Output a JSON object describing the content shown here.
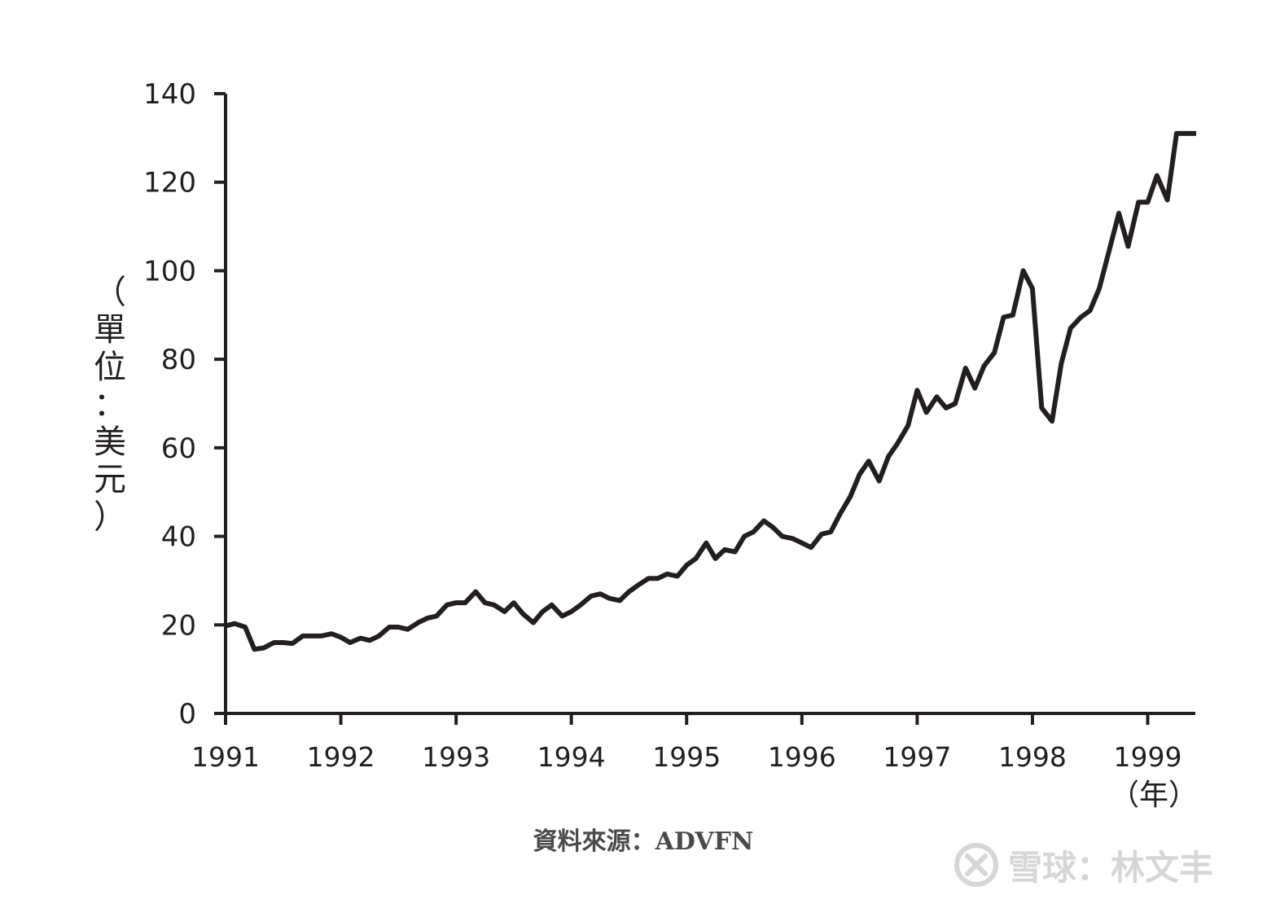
{
  "chart_data": {
    "type": "line",
    "title": "",
    "xlabel": "（年）",
    "ylabel": "（單位：美元）",
    "ylim": [
      0,
      140
    ],
    "xlim": [
      1991,
      1999.42
    ],
    "yticks": [
      "0",
      "20",
      "40",
      "60",
      "80",
      "100",
      "120",
      "140"
    ],
    "xticks": [
      "1991",
      "1992",
      "1993",
      "1994",
      "1995",
      "1996",
      "1997",
      "1998",
      "1999"
    ],
    "grid": false,
    "legend": "none",
    "series": [
      {
        "x": [
          1991.0,
          1991.08,
          1991.17,
          1991.25,
          1991.33,
          1991.42,
          1991.5,
          1991.58,
          1991.67,
          1991.75,
          1991.83,
          1991.92,
          1992.0,
          1992.08,
          1992.17,
          1992.25,
          1992.33,
          1992.42,
          1992.5,
          1992.58,
          1992.67,
          1992.75,
          1992.83,
          1992.92,
          1993.0,
          1993.08,
          1993.17,
          1993.25,
          1993.33,
          1993.42,
          1993.5,
          1993.58,
          1993.67,
          1993.75,
          1993.83,
          1993.92,
          1994.0,
          1994.08,
          1994.17,
          1994.25,
          1994.33,
          1994.42,
          1994.5,
          1994.58,
          1994.67,
          1994.75,
          1994.83,
          1994.92,
          1995.0,
          1995.08,
          1995.17,
          1995.25,
          1995.33,
          1995.42,
          1995.5,
          1995.58,
          1995.67,
          1995.75,
          1995.83,
          1995.92,
          1996.0,
          1996.08,
          1996.17,
          1996.25,
          1996.33,
          1996.42,
          1996.5,
          1996.58,
          1996.67,
          1996.75,
          1996.83,
          1996.92,
          1997.0,
          1997.08,
          1997.17,
          1997.25,
          1997.33,
          1997.42,
          1997.5,
          1997.58,
          1997.67,
          1997.75,
          1997.83,
          1997.92,
          1998.0,
          1998.08,
          1998.17,
          1998.25,
          1998.33,
          1998.42,
          1998.5,
          1998.58,
          1998.67,
          1998.75,
          1998.83,
          1998.92,
          1999.0,
          1999.08,
          1999.17,
          1999.25,
          1999.33,
          1999.42
        ],
        "values": [
          19.8,
          20.3,
          19.5,
          14.5,
          14.8,
          16.0,
          16.0,
          15.8,
          17.5,
          17.5,
          17.5,
          18.0,
          17.2,
          16.0,
          17.0,
          16.5,
          17.5,
          19.5,
          19.5,
          19.0,
          20.5,
          21.5,
          22.0,
          24.5,
          25.0,
          25.0,
          27.5,
          25.0,
          24.5,
          23.0,
          25.0,
          22.5,
          20.5,
          23.0,
          24.5,
          22.0,
          23.0,
          24.5,
          26.5,
          27.0,
          26.0,
          25.5,
          27.5,
          29.0,
          30.5,
          30.5,
          31.5,
          31.0,
          33.5,
          35.0,
          38.5,
          35.0,
          37.0,
          36.5,
          40.0,
          41.0,
          43.5,
          42.0,
          40.0,
          39.5,
          38.5,
          37.5,
          40.5,
          41.0,
          45.0,
          49.0,
          54.0,
          57.0,
          52.5,
          58.0,
          61.0,
          65.0,
          73.0,
          68.0,
          71.5,
          69.0,
          70.0,
          78.0,
          73.5,
          78.5,
          81.5,
          89.5,
          90.0,
          100.0,
          96.0,
          69.0,
          66.0,
          79.0,
          87.0,
          89.5,
          91.0,
          96.0,
          105.0,
          113.0,
          105.5,
          115.5,
          115.5,
          121.5,
          116.0,
          131.0,
          131.0,
          131.0
        ]
      }
    ],
    "source": "資料來源：ADVFN"
  },
  "watermark": {
    "text": "雪球：林文丰",
    "icon": "snowball-logo-icon"
  }
}
